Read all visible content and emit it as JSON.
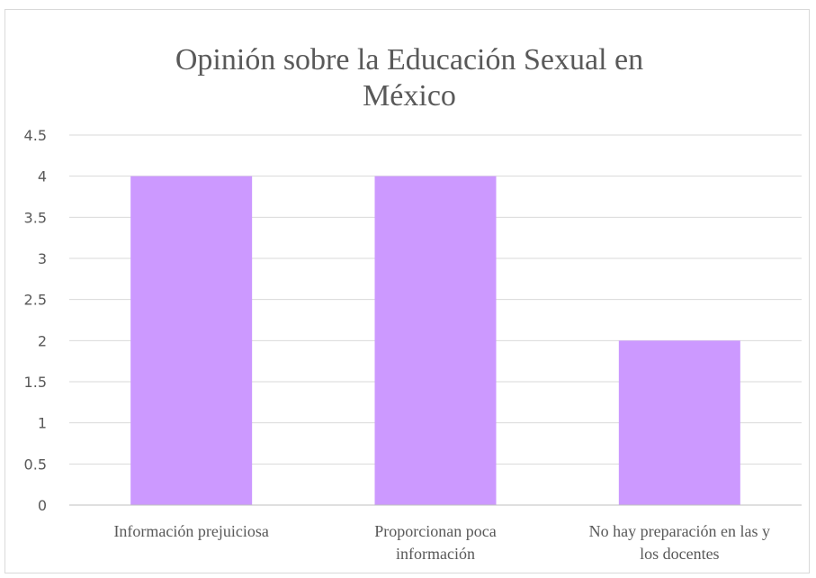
{
  "chart_data": {
    "type": "bar",
    "title_lines": [
      "Opinión sobre la Educación Sexual en",
      "México"
    ],
    "categories": [
      [
        "Información prejuiciosa"
      ],
      [
        "Proporcionan poca",
        "información"
      ],
      [
        "No hay preparación en las y",
        "los docentes"
      ]
    ],
    "values": [
      4,
      4,
      2
    ],
    "ylim": [
      0,
      4.5
    ],
    "yticks": [
      "0",
      "0.5",
      "1",
      "1.5",
      "2",
      "2.5",
      "3",
      "3.5",
      "4",
      "4.5"
    ],
    "grid": true,
    "legend": "none",
    "bar_color": "#cc99ff"
  }
}
